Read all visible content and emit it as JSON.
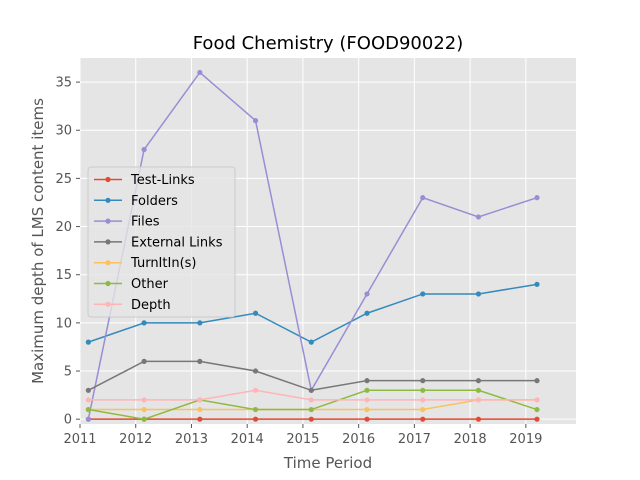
{
  "chart_data": {
    "type": "line",
    "title": "Food Chemistry (FOOD90022)",
    "xlabel": "Time Period",
    "ylabel": "Maximum depth of LMS content items",
    "xlim": [
      2011.0,
      2019.9
    ],
    "ylim": [
      -0.5,
      37.5
    ],
    "xticks": [
      2011,
      2012,
      2013,
      2014,
      2015,
      2016,
      2017,
      2018,
      2019
    ],
    "yticks": [
      0,
      5,
      10,
      15,
      20,
      25,
      30,
      35
    ],
    "grid": true,
    "legend_position": "center-left",
    "x": [
      2011.15,
      2012.15,
      2013.15,
      2014.15,
      2015.15,
      2016.15,
      2017.15,
      2018.15,
      2019.2
    ],
    "series": [
      {
        "name": "Test-Links",
        "color": "#e24a33",
        "values": [
          0,
          0,
          0,
          0,
          0,
          0,
          0,
          0,
          0
        ]
      },
      {
        "name": "Folders",
        "color": "#348abd",
        "values": [
          8,
          10,
          10,
          11,
          8,
          11,
          13,
          13,
          14
        ]
      },
      {
        "name": "Files",
        "color": "#988ed5",
        "values": [
          0,
          28,
          36,
          31,
          3,
          13,
          23,
          21,
          23
        ]
      },
      {
        "name": "External Links",
        "color": "#777777",
        "values": [
          3,
          6,
          6,
          5,
          3,
          4,
          4,
          4,
          4
        ]
      },
      {
        "name": "TurnItIn(s)",
        "color": "#fbc15e",
        "values": [
          1,
          1,
          1,
          1,
          1,
          1,
          1,
          2,
          2
        ]
      },
      {
        "name": "Other",
        "color": "#8eba42",
        "values": [
          1,
          0,
          2,
          1,
          1,
          3,
          3,
          3,
          1
        ]
      },
      {
        "name": "Depth",
        "color": "#ffb5b8",
        "values": [
          2,
          2,
          2,
          3,
          2,
          2,
          2,
          2,
          2
        ]
      }
    ]
  }
}
